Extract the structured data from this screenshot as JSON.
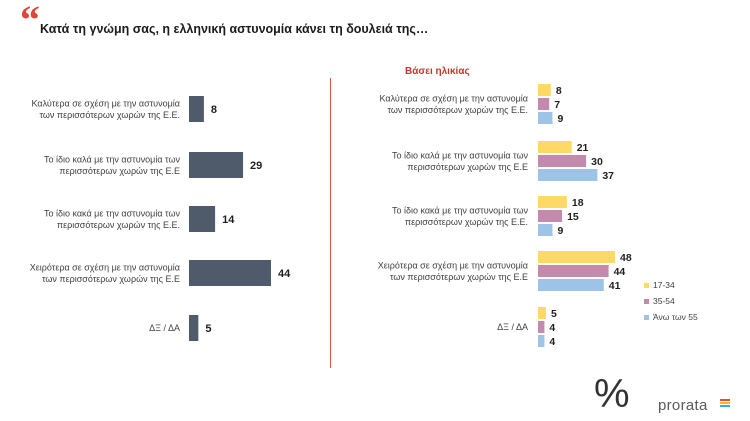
{
  "header": {
    "quote_mark": "“",
    "title": "Κατά τη γνώμη σας, η ελληνική αστυνομία κάνει τη δουλειά της…"
  },
  "right_subtitle": "Βάσει ηλικίας",
  "brand": {
    "name": "prorata",
    "symbol": "%"
  },
  "colors": {
    "accent": "#e0423c",
    "divider": "#d9534f",
    "total_bar": "#4f5a6b",
    "age_17_34": "#ffd966",
    "age_35_54": "#c38aab",
    "age_55_plus": "#9dc3e6",
    "logo_stripes": [
      "#e94b3c",
      "#f5b921",
      "#3ba7db"
    ]
  },
  "chart_data": [
    {
      "type": "bar",
      "orientation": "horizontal",
      "categories": [
        [
          "Καλύτερα σε σχέση με την αστυνομία",
          "των περισσότερων χωρών της Ε.Ε."
        ],
        [
          "Το ίδιο καλά με την αστυνομία των",
          "περισσότερων χωρών της Ε.Ε"
        ],
        [
          "Το ίδιο κακά με την αστυνομία των",
          "περισσότερων χωρών της Ε.Ε."
        ],
        [
          "Χειρότερα σε σχέση με την αστυνομία",
          "των περισσότερων χωρών της Ε.Ε"
        ],
        [
          "ΔΞ / ΔΑ"
        ]
      ],
      "values": [
        8,
        29,
        14,
        44,
        5
      ],
      "xlim": [
        0,
        44
      ]
    },
    {
      "type": "bar",
      "orientation": "horizontal",
      "title": "Βάσει ηλικίας",
      "categories": [
        [
          "Καλύτερα σε σχέση με την αστυνομία",
          "των περισσότερων χωρών της Ε.Ε."
        ],
        [
          "Το ίδιο καλά με την αστυνομία των",
          "περισσότερων χωρών της Ε.Ε"
        ],
        [
          "Το ίδιο κακά με την αστυνομία των",
          "περισσότερων χωρών της Ε.Ε."
        ],
        [
          "Χειρότερα σε σχέση με την αστυνομία",
          "των περισσότερων χωρών της Ε.Ε"
        ],
        [
          "ΔΞ / ΔΑ"
        ]
      ],
      "series": [
        {
          "name": "17-34",
          "values": [
            8,
            21,
            18,
            48,
            5
          ]
        },
        {
          "name": "35-54",
          "values": [
            7,
            30,
            15,
            44,
            4
          ]
        },
        {
          "name": "Άνω των 55",
          "values": [
            9,
            37,
            9,
            41,
            4
          ]
        }
      ],
      "xlim": [
        0,
        48
      ],
      "legend": "bottom-right"
    }
  ]
}
